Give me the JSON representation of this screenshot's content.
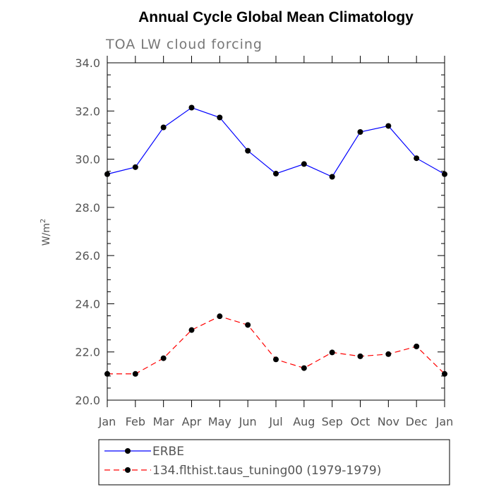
{
  "chart_data": {
    "type": "line",
    "title": "Annual Cycle Global Mean Climatology",
    "subtitle": "TOA LW cloud forcing",
    "ylabel": "W/m",
    "ylabel_sup": "2",
    "categories": [
      "Jan",
      "Feb",
      "Mar",
      "Apr",
      "May",
      "Jun",
      "Jul",
      "Aug",
      "Sep",
      "Oct",
      "Nov",
      "Dec",
      "Jan"
    ],
    "ylim": [
      20.0,
      34.0
    ],
    "yticks": [
      "20.0",
      "22.0",
      "24.0",
      "26.0",
      "28.0",
      "30.0",
      "32.0",
      "34.0"
    ],
    "grid": false,
    "legend_position": "bottom",
    "series": [
      {
        "name": "ERBE",
        "color": "#0000ff",
        "dash": "solid",
        "values": [
          29.38,
          29.67,
          31.32,
          32.14,
          31.73,
          30.35,
          29.4,
          29.8,
          29.27,
          31.13,
          31.38,
          30.04,
          29.38
        ]
      },
      {
        "name": "134.flthist.taus_tuning00 (1979-1979)",
        "color": "#ff0000",
        "dash": "dashed",
        "values": [
          21.09,
          21.09,
          21.74,
          22.91,
          23.48,
          23.12,
          21.69,
          21.33,
          21.98,
          21.82,
          21.91,
          22.23,
          21.09
        ]
      }
    ]
  }
}
